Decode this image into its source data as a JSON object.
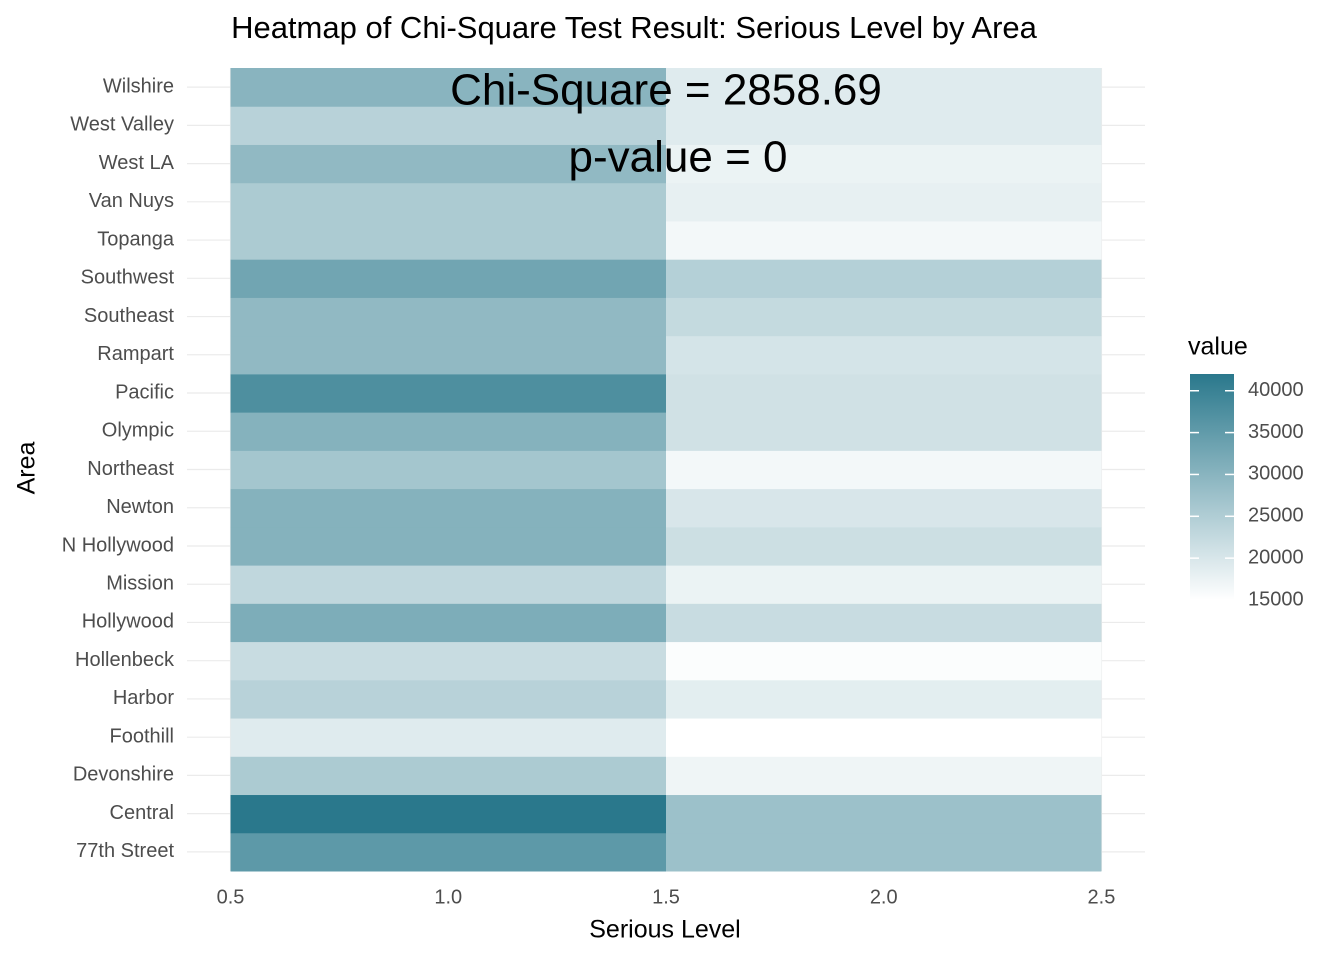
{
  "chart_data": {
    "type": "heatmap",
    "title": "Heatmap of Chi-Square Test Result: Serious Level by Area",
    "x_label": "Serious Level",
    "y_label": "Area",
    "x": [
      1,
      2
    ],
    "categories": [
      "77th Street",
      "Central",
      "Devonshire",
      "Foothill",
      "Harbor",
      "Hollenbeck",
      "Hollywood",
      "Mission",
      "N Hollywood",
      "Newton",
      "Northeast",
      "Olympic",
      "Pacific",
      "Rampart",
      "Southeast",
      "Southwest",
      "Topanga",
      "Van Nuys",
      "West LA",
      "West Valley",
      "Wilshire"
    ],
    "values": [
      [
        35500,
        27500
      ],
      [
        42000,
        27500
      ],
      [
        25500,
        17000
      ],
      [
        19000,
        15000
      ],
      [
        24000,
        18500
      ],
      [
        22000,
        15500
      ],
      [
        31500,
        22000
      ],
      [
        23000,
        17500
      ],
      [
        30500,
        21500
      ],
      [
        30500,
        20000
      ],
      [
        26500,
        16500
      ],
      [
        30500,
        21000
      ],
      [
        37500,
        21000
      ],
      [
        29000,
        20500
      ],
      [
        29000,
        22500
      ],
      [
        33000,
        24500
      ],
      [
        25500,
        16500
      ],
      [
        25500,
        18000
      ],
      [
        29000,
        17500
      ],
      [
        24000,
        19000
      ],
      [
        30000,
        19000
      ]
    ],
    "xlim": [
      0.4,
      2.6
    ],
    "xticks": [
      {
        "value": 0.5,
        "label": "0.5"
      },
      {
        "value": 1,
        "label": "1.0"
      },
      {
        "value": 1.5,
        "label": "1.5"
      },
      {
        "value": 2,
        "label": "2.0"
      },
      {
        "value": 2.5,
        "label": "2.5"
      }
    ],
    "annotations": [
      "Chi-Square =  2858.69",
      "p-value =  0"
    ],
    "legend_title": "value",
    "clim": [
      15000,
      42000
    ],
    "cticks": [
      15000,
      20000,
      25000,
      30000,
      35000,
      40000
    ],
    "color_low": "#ffffff",
    "color_high": "#2a788c",
    "grid": true
  }
}
